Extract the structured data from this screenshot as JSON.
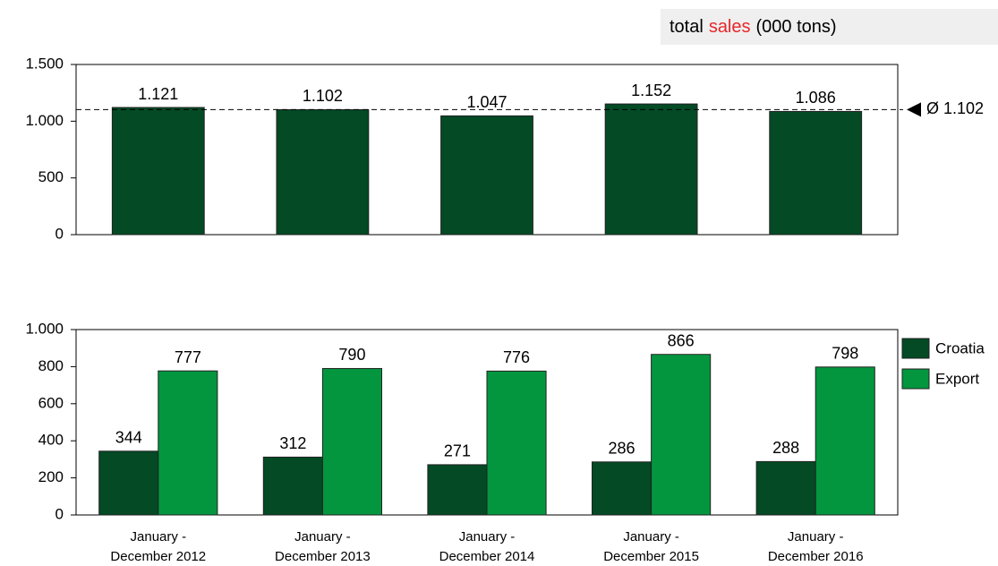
{
  "chart_data": [
    {
      "type": "bar",
      "title_parts": [
        "total",
        "sales",
        "(000 tons)"
      ],
      "values": [
        1121,
        1102,
        1047,
        1152,
        1086
      ],
      "value_labels": [
        "1.121",
        "1.102",
        "1.047",
        "1.152",
        "1.086"
      ],
      "color": "#034a25",
      "average": 1102,
      "average_label": "Ø 1.102",
      "ylim": [
        0,
        1500
      ],
      "yticks": [
        0,
        500,
        {
          "value": 1000,
          "label": "1.000"
        },
        {
          "value": 1500,
          "label": "1.500"
        }
      ]
    },
    {
      "type": "grouped_bar",
      "categories": [
        "January - December 2012",
        "January - December 2013",
        "January - December 2014",
        "January - December 2015",
        "January - December 2016"
      ],
      "series": [
        {
          "name": "Croatia",
          "color": "#034a25",
          "values": [
            344,
            312,
            271,
            286,
            288
          ]
        },
        {
          "name": "Export",
          "color": "#03963f",
          "values": [
            777,
            790,
            776,
            866,
            798
          ]
        }
      ],
      "ylim": [
        0,
        1000
      ],
      "yticks": [
        0,
        200,
        400,
        600,
        800,
        {
          "value": 1000,
          "label": "1.000"
        }
      ],
      "legend": "right"
    }
  ]
}
